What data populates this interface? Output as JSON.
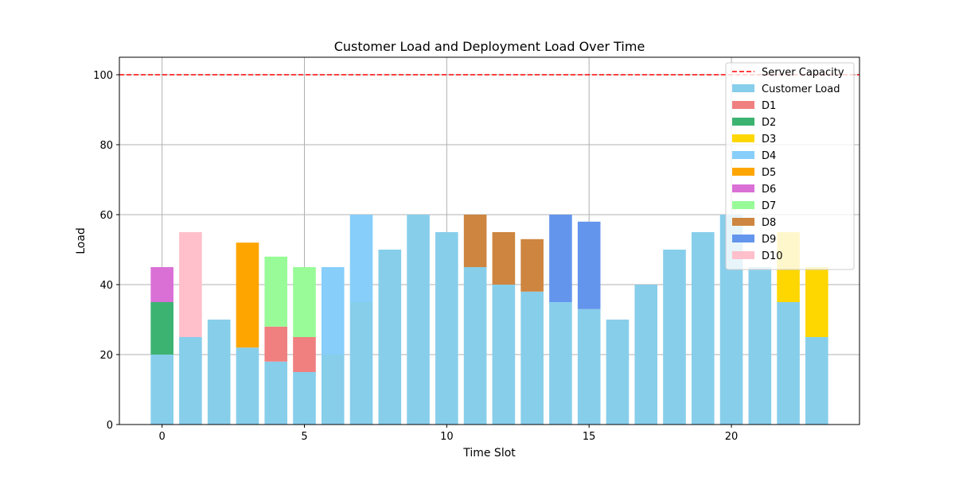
{
  "chart_data": {
    "type": "bar",
    "title": "Customer Load and Deployment Load Over Time",
    "xlabel": "Time Slot",
    "ylabel": "Load",
    "xlim": [
      -1.5,
      24.5
    ],
    "ylim": [
      0,
      105
    ],
    "xticks": [
      0,
      5,
      10,
      15,
      20
    ],
    "yticks": [
      0,
      20,
      40,
      60,
      80,
      100
    ],
    "grid": true,
    "legend_position": "top-right",
    "server_capacity": {
      "name": "Server Capacity",
      "value": 100,
      "color": "#ff0000"
    },
    "x": [
      0,
      1,
      2,
      3,
      4,
      5,
      6,
      7,
      8,
      9,
      10,
      11,
      12,
      13,
      14,
      15,
      16,
      17,
      18,
      19,
      20,
      21,
      22,
      23
    ],
    "customer_load": {
      "name": "Customer Load",
      "color": "#87ceeb",
      "values": [
        20,
        25,
        30,
        22,
        18,
        15,
        20,
        35,
        50,
        60,
        55,
        45,
        40,
        38,
        35,
        33,
        30,
        40,
        50,
        55,
        60,
        45,
        35,
        25
      ]
    },
    "deployments": [
      {
        "name": "D1",
        "color": "#f08080",
        "segments": [
          {
            "x": 4,
            "bottom": 18,
            "height": 10
          },
          {
            "x": 5,
            "bottom": 15,
            "height": 10
          }
        ]
      },
      {
        "name": "D2",
        "color": "#3cb371",
        "segments": [
          {
            "x": 0,
            "bottom": 20,
            "height": 15
          }
        ]
      },
      {
        "name": "D3",
        "color": "#ffd700",
        "segments": [
          {
            "x": 22,
            "bottom": 35,
            "height": 20
          },
          {
            "x": 23,
            "bottom": 25,
            "height": 20
          }
        ]
      },
      {
        "name": "D4",
        "color": "#87cefa",
        "segments": [
          {
            "x": 6,
            "bottom": 20,
            "height": 25
          },
          {
            "x": 7,
            "bottom": 35,
            "height": 25
          }
        ]
      },
      {
        "name": "D5",
        "color": "#ffa500",
        "segments": [
          {
            "x": 3,
            "bottom": 22,
            "height": 30
          }
        ]
      },
      {
        "name": "D6",
        "color": "#da70d6",
        "segments": [
          {
            "x": 0,
            "bottom": 35,
            "height": 10
          }
        ]
      },
      {
        "name": "D7",
        "color": "#98fb98",
        "segments": [
          {
            "x": 4,
            "bottom": 28,
            "height": 20
          },
          {
            "x": 5,
            "bottom": 25,
            "height": 20
          }
        ]
      },
      {
        "name": "D8",
        "color": "#cd853f",
        "segments": [
          {
            "x": 11,
            "bottom": 45,
            "height": 15
          },
          {
            "x": 12,
            "bottom": 40,
            "height": 15
          },
          {
            "x": 13,
            "bottom": 38,
            "height": 15
          }
        ]
      },
      {
        "name": "D9",
        "color": "#6495ed",
        "segments": [
          {
            "x": 14,
            "bottom": 35,
            "height": 25
          },
          {
            "x": 15,
            "bottom": 33,
            "height": 25
          }
        ]
      },
      {
        "name": "D10",
        "color": "#ffc0cb",
        "segments": [
          {
            "x": 1,
            "bottom": 25,
            "height": 30
          }
        ]
      }
    ]
  }
}
